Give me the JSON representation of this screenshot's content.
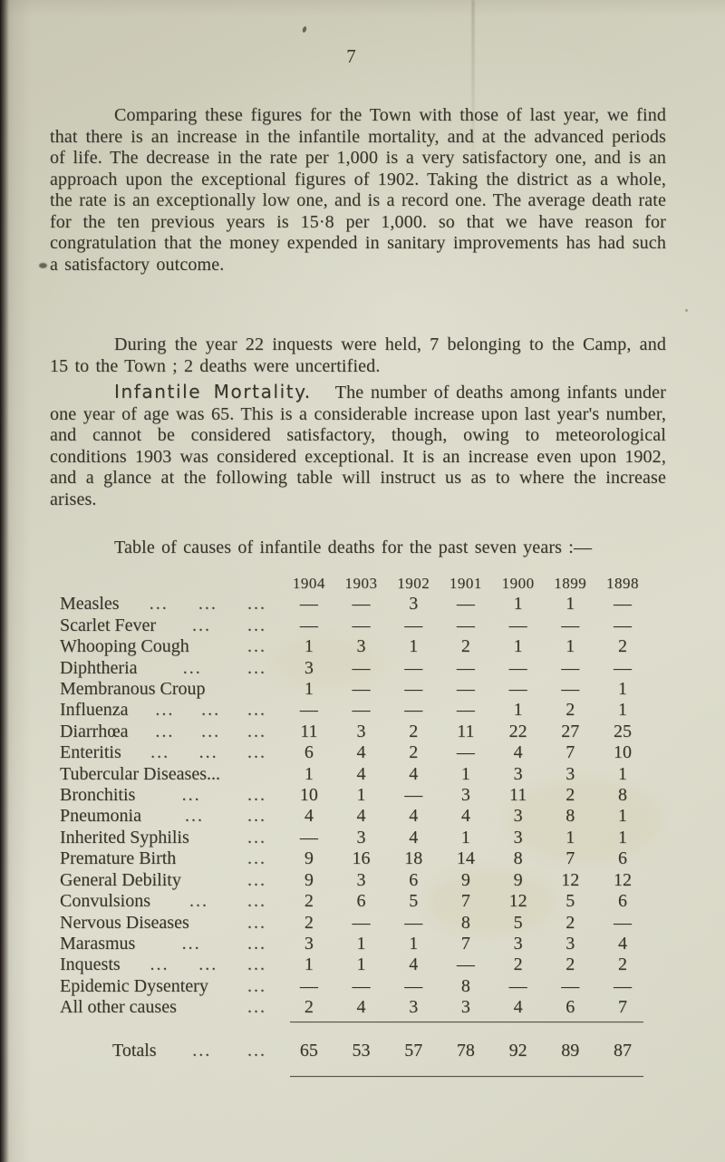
{
  "colors": {
    "paper": "#d6d5c4",
    "paper-light": "#deddcd",
    "paper-dark": "#c9c8b4",
    "ink": "#37342a",
    "edge": "#1b1612"
  },
  "page": {
    "number": "7",
    "paragraphs": {
      "p1": "Comparing these figures for the Town with those of last year, we find that there is an increase in the infantile mortality, and at the advanced periods of life.  The decrease in the rate per 1,000 is a very satisfactory one, and is an approach upon the exceptional figures of 1902.  Taking the district as a whole, the rate is an exceptionally low one, and is a record one.  The average death rate for the ten previous years is 15·8 per 1,000. so that we have reason for congratulation that the money expended in sanitary improvements has had such a satisfactory outcome.",
      "p2": "During the year 22 inquests were held, 7 belonging to the Camp, and 15 to the Town ; 2 deaths were uncertified.",
      "p3_heading": "Infantile Mortality.",
      "p3_body": "The number of deaths among infants under one year of age was 65.  This is a considerable increase upon last year's number, and cannot be considered satisfactory, though, owing to meteorological conditions 1903 was considered exceptional.  It is an increase even upon 1902, and a glance at the following table will instruct us as to where the increase arises.",
      "p4": "Table of causes of infantile deaths for the past seven years :—"
    }
  },
  "table": {
    "years": [
      "1904",
      "1903",
      "1902",
      "1901",
      "1900",
      "1899",
      "1898"
    ],
    "empty_mark": "—",
    "rows": [
      {
        "label": "Measles",
        "dots": "... ... ...",
        "values": [
          "—",
          "—",
          "3",
          "—",
          "1",
          "1",
          "—"
        ]
      },
      {
        "label": "Scarlet Fever",
        "dots": "... ...",
        "values": [
          "—",
          "—",
          "—",
          "—",
          "—",
          "—",
          "—"
        ]
      },
      {
        "label": "Whooping Cough",
        "dots": "...",
        "values": [
          "1",
          "3",
          "1",
          "2",
          "1",
          "1",
          "2"
        ]
      },
      {
        "label": "Diphtheria",
        "dots": "... ...",
        "values": [
          "3",
          "—",
          "—",
          "—",
          "—",
          "—",
          "—"
        ]
      },
      {
        "label": "Membranous Croup",
        "dots": "",
        "values": [
          "1",
          "—",
          "—",
          "—",
          "—",
          "—",
          "1"
        ]
      },
      {
        "label": "Influenza",
        "dots": "... ... ...",
        "values": [
          "—",
          "—",
          "—",
          "—",
          "1",
          "2",
          "1"
        ]
      },
      {
        "label": "Diarrhœa",
        "dots": "... ... ...",
        "values": [
          "11",
          "3",
          "2",
          "11",
          "22",
          "27",
          "25"
        ]
      },
      {
        "label": "Enteritis",
        "dots": "... ... ...",
        "values": [
          "6",
          "4",
          "2",
          "—",
          "4",
          "7",
          "10"
        ]
      },
      {
        "label": "Tubercular Diseases...",
        "dots": "",
        "values": [
          "1",
          "4",
          "4",
          "1",
          "3",
          "3",
          "1"
        ]
      },
      {
        "label": "Bronchitis",
        "dots": "... ...",
        "values": [
          "10",
          "1",
          "—",
          "3",
          "11",
          "2",
          "8"
        ]
      },
      {
        "label": "Pneumonia",
        "dots": "... ...",
        "values": [
          "4",
          "4",
          "4",
          "4",
          "3",
          "8",
          "1"
        ]
      },
      {
        "label": "Inherited Syphilis",
        "dots": "...",
        "values": [
          "—",
          "3",
          "4",
          "1",
          "3",
          "1",
          "1"
        ]
      },
      {
        "label": "Premature Birth",
        "dots": "...",
        "values": [
          "9",
          "16",
          "18",
          "14",
          "8",
          "7",
          "6"
        ]
      },
      {
        "label": "General Debility",
        "dots": "...",
        "values": [
          "9",
          "3",
          "6",
          "9",
          "9",
          "12",
          "12"
        ]
      },
      {
        "label": "Convulsions",
        "dots": "... ...",
        "values": [
          "2",
          "6",
          "5",
          "7",
          "12",
          "5",
          "6"
        ]
      },
      {
        "label": "Nervous Diseases",
        "dots": "...",
        "values": [
          "2",
          "—",
          "—",
          "8",
          "5",
          "2",
          "—"
        ]
      },
      {
        "label": "Marasmus",
        "dots": "... ...",
        "values": [
          "3",
          "1",
          "1",
          "7",
          "3",
          "3",
          "4"
        ]
      },
      {
        "label": "Inquests",
        "dots": "... ... ...",
        "values": [
          "1",
          "1",
          "4",
          "—",
          "2",
          "2",
          "2"
        ]
      },
      {
        "label": "Epidemic Dysentery",
        "dots": "...",
        "values": [
          "—",
          "—",
          "—",
          "8",
          "—",
          "—",
          "—"
        ]
      },
      {
        "label": "All other causes",
        "dots": "...",
        "values": [
          "2",
          "4",
          "3",
          "3",
          "4",
          "6",
          "7"
        ]
      }
    ],
    "totals": {
      "label": "Totals",
      "dots": "... ...",
      "values": [
        "65",
        "53",
        "57",
        "78",
        "92",
        "89",
        "87"
      ]
    }
  }
}
